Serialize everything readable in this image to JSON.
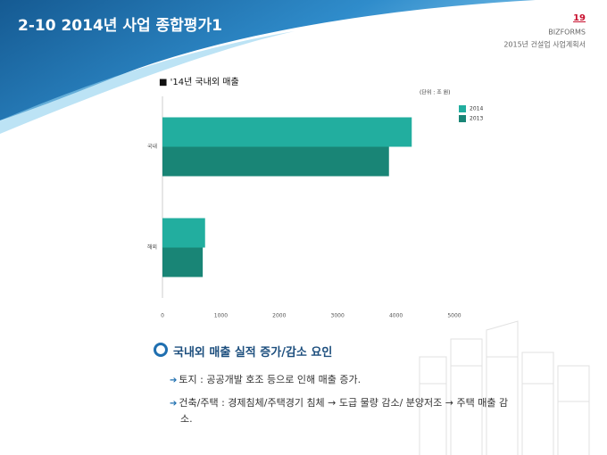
{
  "header": {
    "title": "2-10 2014년 사업 종합평가1",
    "page_number": "19",
    "brand": "BIZFORMS",
    "subtitle": "2015년 건설업 사업계획서"
  },
  "chart_data": {
    "type": "bar",
    "orientation": "horizontal",
    "title": "■ '14년 국내외 매출",
    "unit": "(단위 : 조 원)",
    "categories": [
      "국내",
      "해외"
    ],
    "series": [
      {
        "name": "2014",
        "color": "#22ae9f",
        "values": [
          4270,
          730
        ]
      },
      {
        "name": "2013",
        "color": "#198576",
        "values": [
          3880,
          690
        ]
      }
    ],
    "xlim": [
      0,
      5000
    ],
    "xticks": [
      0,
      1000,
      2000,
      3000,
      4000,
      5000
    ],
    "grid": false,
    "legend": "upper right"
  },
  "section": {
    "heading": "국내외 매출 실적 증가/감소 요인",
    "items": [
      "토지 : 공공개발 호조 등으로 인해 매출 증가.",
      "건축/주택 : 경제침체/주택경기 침체 → 도급 물량 감소/ 분양저조 → 주택 매출 감소."
    ]
  }
}
